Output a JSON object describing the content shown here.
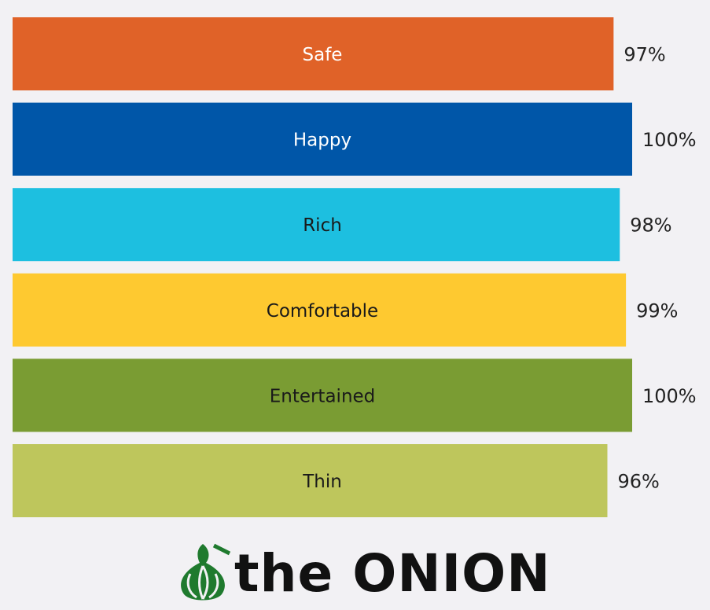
{
  "chart_data": {
    "type": "bar",
    "orientation": "horizontal",
    "categories": [
      "Safe",
      "Happy",
      "Rich",
      "Comfortable",
      "Entertained",
      "Thin"
    ],
    "values": [
      97,
      100,
      98,
      99,
      100,
      96
    ],
    "value_labels": [
      "97%",
      "100%",
      "98%",
      "99%",
      "100%",
      "96%"
    ],
    "colors": [
      "#e06228",
      "#0056a8",
      "#1dbfe0",
      "#fec930",
      "#7a9c33",
      "#bec65c"
    ],
    "label_colors": [
      "#ffffff",
      "#ffffff",
      "#1a1a1a",
      "#1a1a1a",
      "#1a1a1a",
      "#1a1a1a"
    ],
    "xlim": [
      0,
      100
    ],
    "brand": "the ONION"
  }
}
